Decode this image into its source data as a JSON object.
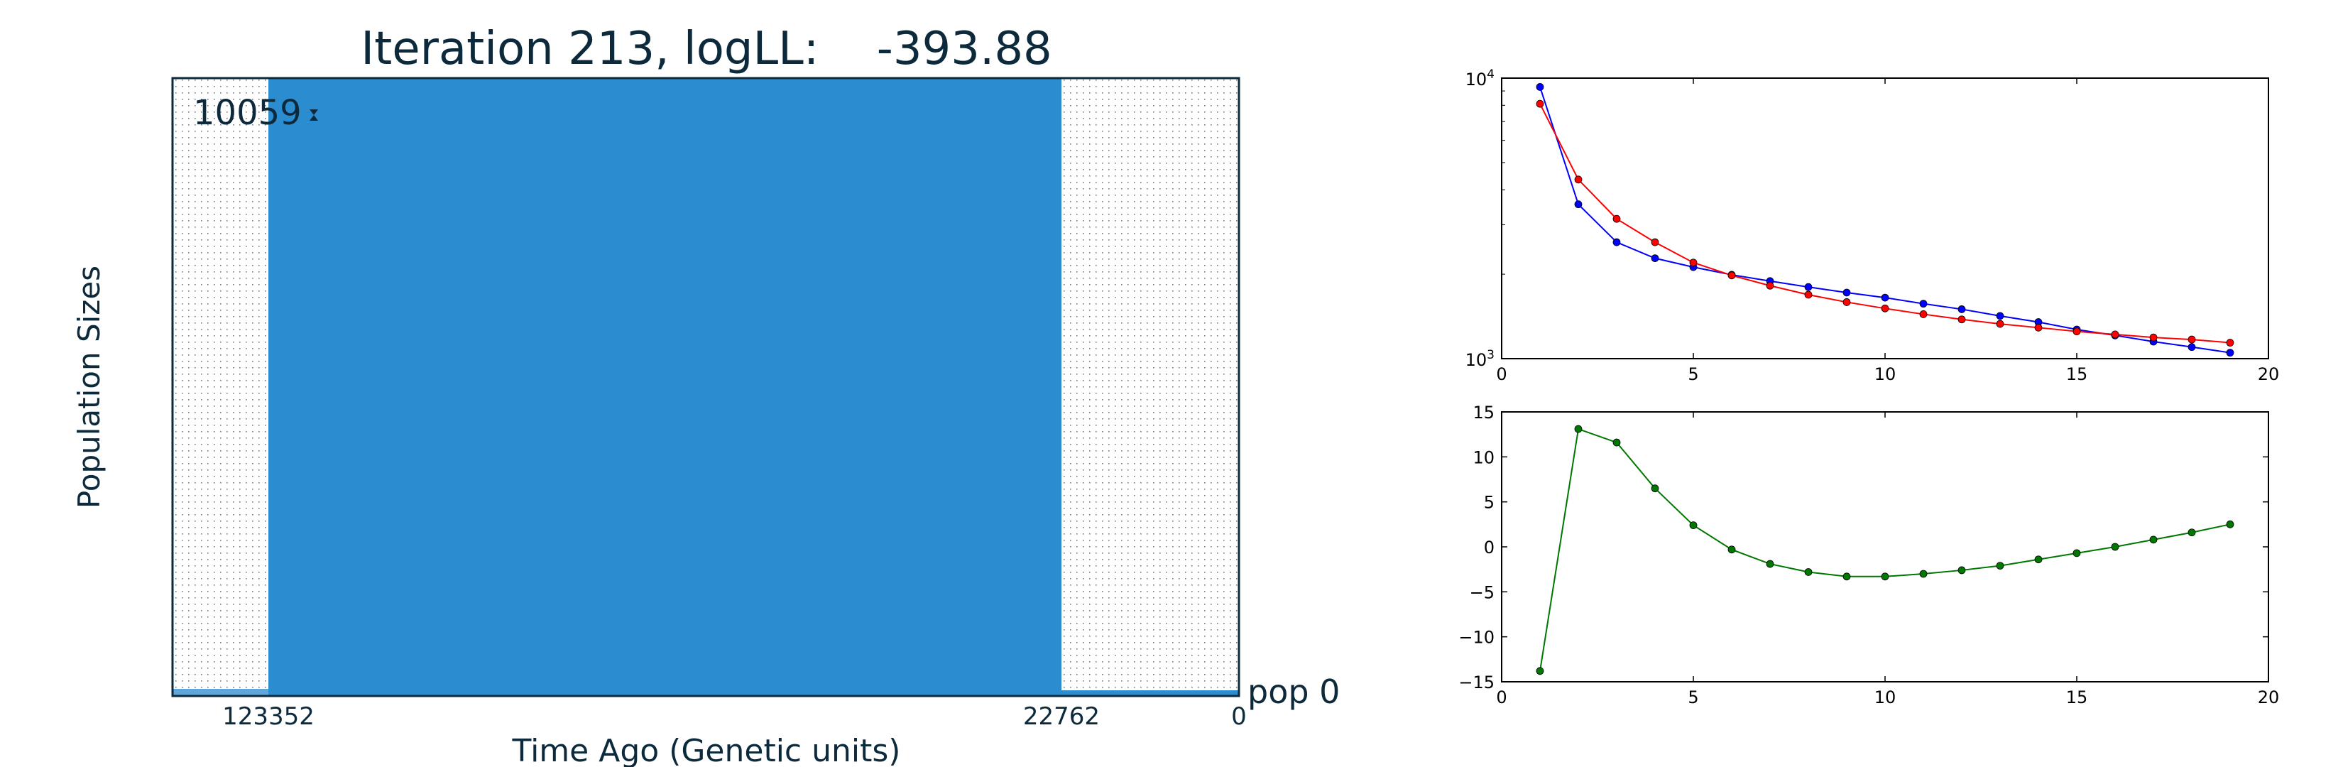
{
  "population_panel": {
    "title": "Iteration 213, logLL:    -393.88",
    "ylabel": "Population Sizes",
    "xlabel": "Time Ago (Genetic units)",
    "max_size_label": "10059",
    "pop_label": "pop 0",
    "time_ticks": [
      "123352",
      "22762",
      "0"
    ],
    "colors": {
      "fill": "#2b8ccf",
      "frame": "#0d2a3d",
      "dot": "#555555"
    }
  },
  "chart_data": [
    {
      "type": "line",
      "yscale": "log",
      "xlim": [
        0,
        20
      ],
      "ylim": [
        1000,
        10000
      ],
      "xticks": [
        "0",
        "5",
        "10",
        "15",
        "20"
      ],
      "yticks": [
        "10^3",
        "10^4"
      ],
      "x": [
        1,
        2,
        3,
        4,
        5,
        6,
        7,
        8,
        9,
        10,
        11,
        12,
        13,
        14,
        15,
        16,
        17,
        18,
        19
      ],
      "series": [
        {
          "color": "#0000ff",
          "values": [
            9300,
            3550,
            2600,
            2280,
            2120,
            1990,
            1890,
            1800,
            1720,
            1650,
            1570,
            1500,
            1420,
            1350,
            1270,
            1210,
            1150,
            1100,
            1050
          ]
        },
        {
          "color": "#ff0000",
          "values": [
            8100,
            4350,
            3150,
            2600,
            2200,
            1980,
            1820,
            1690,
            1590,
            1510,
            1440,
            1380,
            1330,
            1290,
            1250,
            1220,
            1190,
            1170,
            1140
          ]
        }
      ]
    },
    {
      "type": "line",
      "xlim": [
        0,
        20
      ],
      "ylim": [
        -15,
        15
      ],
      "xticks": [
        "0",
        "5",
        "10",
        "15",
        "20"
      ],
      "yticks": [
        "−15",
        "−10",
        "−5",
        "0",
        "5",
        "10",
        "15"
      ],
      "x": [
        1,
        2,
        3,
        4,
        5,
        6,
        7,
        8,
        9,
        10,
        11,
        12,
        13,
        14,
        15,
        16,
        17,
        18,
        19
      ],
      "series": [
        {
          "color": "#007700",
          "values": [
            -13.8,
            13.1,
            11.6,
            6.5,
            2.4,
            -0.3,
            -1.9,
            -2.8,
            -3.3,
            -3.3,
            -3.0,
            -2.6,
            -2.1,
            -1.4,
            -0.7,
            0.0,
            0.8,
            1.6,
            2.5
          ]
        }
      ]
    }
  ]
}
